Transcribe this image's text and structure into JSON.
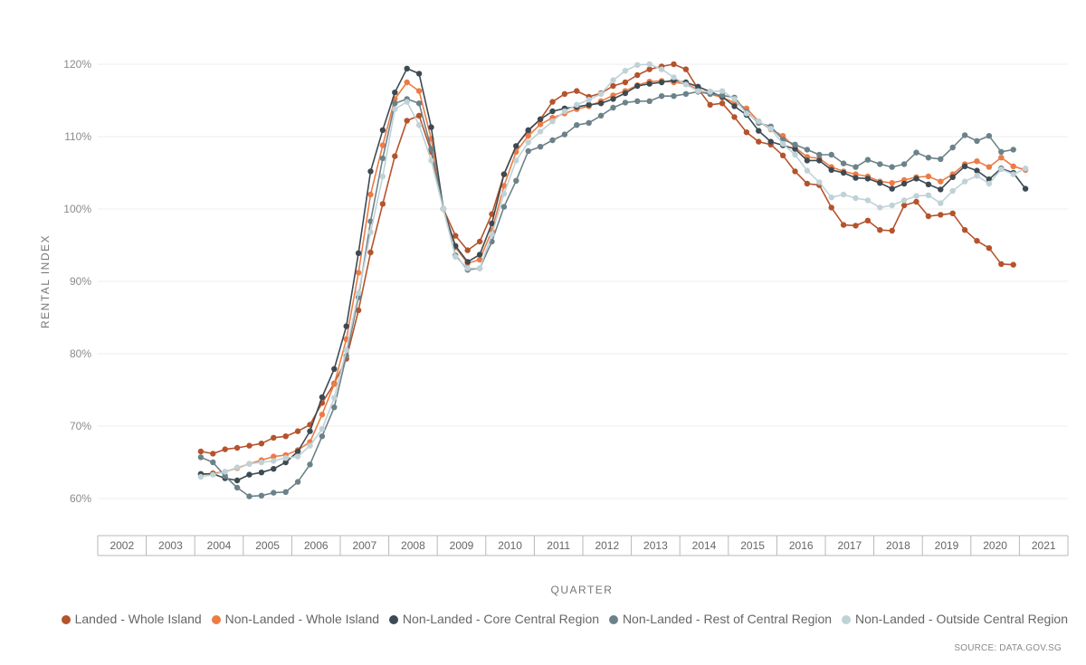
{
  "chart_data": {
    "type": "line",
    "xlabel": "QUARTER",
    "ylabel": "RENTAL INDEX",
    "ylim": [
      55,
      122
    ],
    "yticks": [
      60,
      70,
      80,
      90,
      100,
      110,
      120
    ],
    "ytick_labels": [
      "60%",
      "70%",
      "80%",
      "90%",
      "100%",
      "110%",
      "120%"
    ],
    "years": [
      "2002",
      "2003",
      "2004",
      "2005",
      "2006",
      "2007",
      "2008",
      "2009",
      "2010",
      "2011",
      "2012",
      "2013",
      "2014",
      "2015",
      "2016",
      "2017",
      "2018",
      "2019",
      "2020",
      "2021"
    ],
    "x_start": "2004-Q1",
    "grid": "horizontal",
    "legend_position": "bottom",
    "series": [
      {
        "name": "Landed - Whole Island",
        "color": "#b5532c",
        "values": [
          66.5,
          66.2,
          66.8,
          67.0,
          67.3,
          67.6,
          68.4,
          68.6,
          69.3,
          70.2,
          73.2,
          75.9,
          79.3,
          86.0,
          94.0,
          100.7,
          107.3,
          112.2,
          112.9,
          107.9,
          100.0,
          96.3,
          94.3,
          95.5,
          99.3,
          104.8,
          108.7,
          110.8,
          112.4,
          114.8,
          115.9,
          116.3,
          115.5,
          116.0,
          117.0,
          117.5,
          118.5,
          119.3,
          119.7,
          120.0,
          119.3,
          116.6,
          114.4,
          114.6,
          112.7,
          110.6,
          109.3,
          108.9,
          107.4,
          105.2,
          103.5,
          103.3,
          100.2,
          97.8,
          97.7,
          98.4,
          97.1,
          97.0,
          100.5,
          101.0,
          99.0,
          99.2,
          99.4,
          97.1,
          95.6,
          94.6,
          92.4,
          92.3
        ]
      },
      {
        "name": "Non-Landed - Whole Island",
        "color": "#ec7b45",
        "values": [
          63.3,
          63.5,
          63.7,
          64.2,
          64.8,
          65.3,
          65.8,
          66.0,
          66.7,
          67.8,
          71.6,
          75.8,
          82.0,
          91.2,
          102.0,
          108.8,
          115.2,
          117.5,
          116.3,
          109.7,
          100.0,
          94.7,
          92.5,
          93.0,
          97.0,
          103.2,
          107.9,
          110.1,
          111.7,
          112.6,
          113.2,
          113.8,
          114.2,
          114.9,
          115.7,
          116.3,
          117.1,
          117.6,
          117.7,
          117.5,
          117.3,
          116.5,
          115.9,
          115.4,
          114.7,
          113.9,
          112.1,
          111.0,
          110.1,
          108.5,
          107.2,
          107.0,
          105.8,
          105.2,
          104.8,
          104.5,
          103.8,
          103.6,
          104.0,
          104.4,
          104.5,
          103.8,
          104.8,
          106.2,
          106.6,
          105.8,
          107.1,
          105.9,
          105.4
        ]
      },
      {
        "name": "Non-Landed - Core Central Region",
        "color": "#3d4a52",
        "values": [
          63.4,
          63.4,
          62.8,
          62.5,
          63.3,
          63.6,
          64.1,
          65.0,
          66.5,
          69.3,
          74.0,
          77.9,
          83.8,
          93.9,
          105.2,
          110.9,
          116.1,
          119.4,
          118.7,
          111.3,
          100.0,
          94.9,
          92.7,
          93.7,
          98.0,
          104.8,
          108.7,
          110.9,
          112.4,
          113.5,
          113.9,
          114.1,
          114.4,
          114.6,
          115.2,
          116.0,
          117.0,
          117.3,
          117.5,
          117.8,
          117.5,
          116.9,
          116.2,
          115.5,
          114.2,
          113.0,
          110.8,
          109.3,
          108.8,
          108.3,
          106.7,
          106.7,
          105.4,
          105.0,
          104.3,
          104.2,
          103.6,
          102.8,
          103.5,
          104.2,
          103.4,
          102.7,
          104.4,
          105.9,
          105.3,
          104.1,
          105.6,
          105.0,
          102.8
        ]
      },
      {
        "name": "Non-Landed - Rest of Central Region",
        "color": "#6b8289",
        "values": [
          65.7,
          65.0,
          63.1,
          61.5,
          60.3,
          60.4,
          60.8,
          60.9,
          62.3,
          64.7,
          68.6,
          72.6,
          79.7,
          87.8,
          98.3,
          107.0,
          114.6,
          115.2,
          114.6,
          108.3,
          100.0,
          93.6,
          91.6,
          91.8,
          95.5,
          100.3,
          103.9,
          108.0,
          108.6,
          109.5,
          110.3,
          111.6,
          111.9,
          112.9,
          114.0,
          114.7,
          114.9,
          114.9,
          115.6,
          115.6,
          115.9,
          116.2,
          115.9,
          115.7,
          115.4,
          113.4,
          111.9,
          111.4,
          109.6,
          108.9,
          108.2,
          107.5,
          107.5,
          106.3,
          105.8,
          106.8,
          106.2,
          105.8,
          106.2,
          107.8,
          107.1,
          106.9,
          108.5,
          110.2,
          109.4,
          110.1,
          107.9,
          108.2
        ]
      },
      {
        "name": "Non-Landed - Outside Central Region",
        "color": "#bfd2d7",
        "values": [
          63.0,
          63.3,
          63.7,
          64.3,
          64.8,
          65.0,
          65.2,
          65.6,
          65.8,
          67.3,
          69.6,
          73.9,
          80.5,
          88.4,
          96.8,
          104.5,
          113.8,
          114.8,
          111.6,
          106.7,
          100.0,
          93.4,
          91.8,
          91.8,
          96.5,
          102.1,
          106.7,
          109.2,
          110.7,
          112.1,
          113.5,
          114.4,
          115.1,
          115.9,
          117.8,
          119.1,
          119.9,
          120.0,
          119.3,
          118.2,
          117.2,
          116.3,
          116.2,
          116.3,
          115.2,
          113.2,
          112.1,
          111.1,
          109.0,
          107.5,
          105.3,
          103.7,
          101.6,
          102.0,
          101.5,
          101.2,
          100.2,
          100.5,
          101.2,
          101.8,
          101.9,
          100.8,
          102.5,
          103.8,
          104.6,
          103.5,
          105.5,
          104.8,
          105.6
        ]
      }
    ]
  },
  "source": "SOURCE: DATA.GOV.SG"
}
